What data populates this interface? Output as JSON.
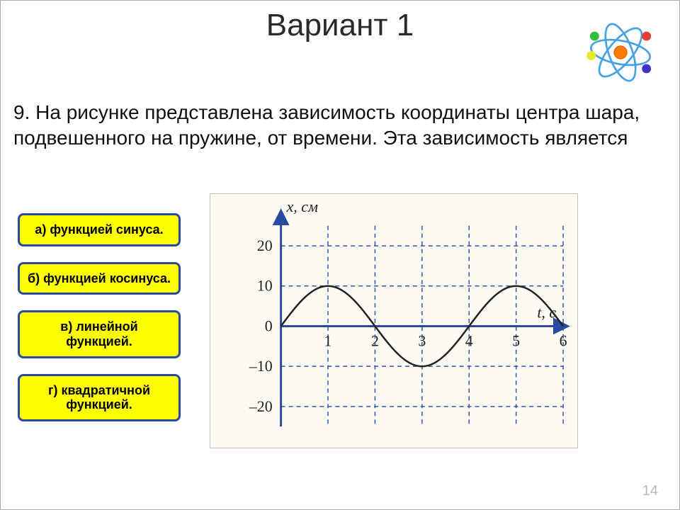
{
  "title": "Вариант 1",
  "question": "9. На рисунке представлена зависимость координаты центра шара, подвешенного на пружине, от времени. Эта зависимость является",
  "answers": {
    "a": "а) функцией синуса.",
    "b": "б) функцией косинуса.",
    "c": "в) линейной функцией.",
    "d": "г) квадратичной функцией."
  },
  "page_number": "14",
  "chart": {
    "type": "line",
    "y_label": "x, см",
    "x_label": "t, с",
    "amplitude_cm": 10,
    "period_s": 4,
    "phase": "sine",
    "x_range": [
      0,
      6
    ],
    "y_range": [
      -25,
      25
    ],
    "y_ticks": [
      -20,
      -10,
      0,
      10,
      20
    ],
    "y_tick_labels": [
      "–20",
      "–10",
      "0",
      "10",
      "20"
    ],
    "x_ticks": [
      1,
      2,
      3,
      4,
      5,
      6
    ],
    "x_tick_labels": [
      "1",
      "2",
      "3",
      "4",
      "5",
      "6"
    ],
    "grid_color": "#3555a8",
    "grid_dash": "6 5",
    "axis_color": "#2a4aa0",
    "curve_color": "#222222",
    "curve_width": 2.5,
    "background_color": "#fdfaf4",
    "label_font_size": 22,
    "tick_font_size": 22,
    "label_font_style": "italic"
  },
  "atom": {
    "nucleus_color": "#ff7a00",
    "orbit_color": "#4aa3e0",
    "electrons": [
      "#e83c3c",
      "#2fbf3a",
      "#3b35c9",
      "#e8e82a"
    ]
  }
}
